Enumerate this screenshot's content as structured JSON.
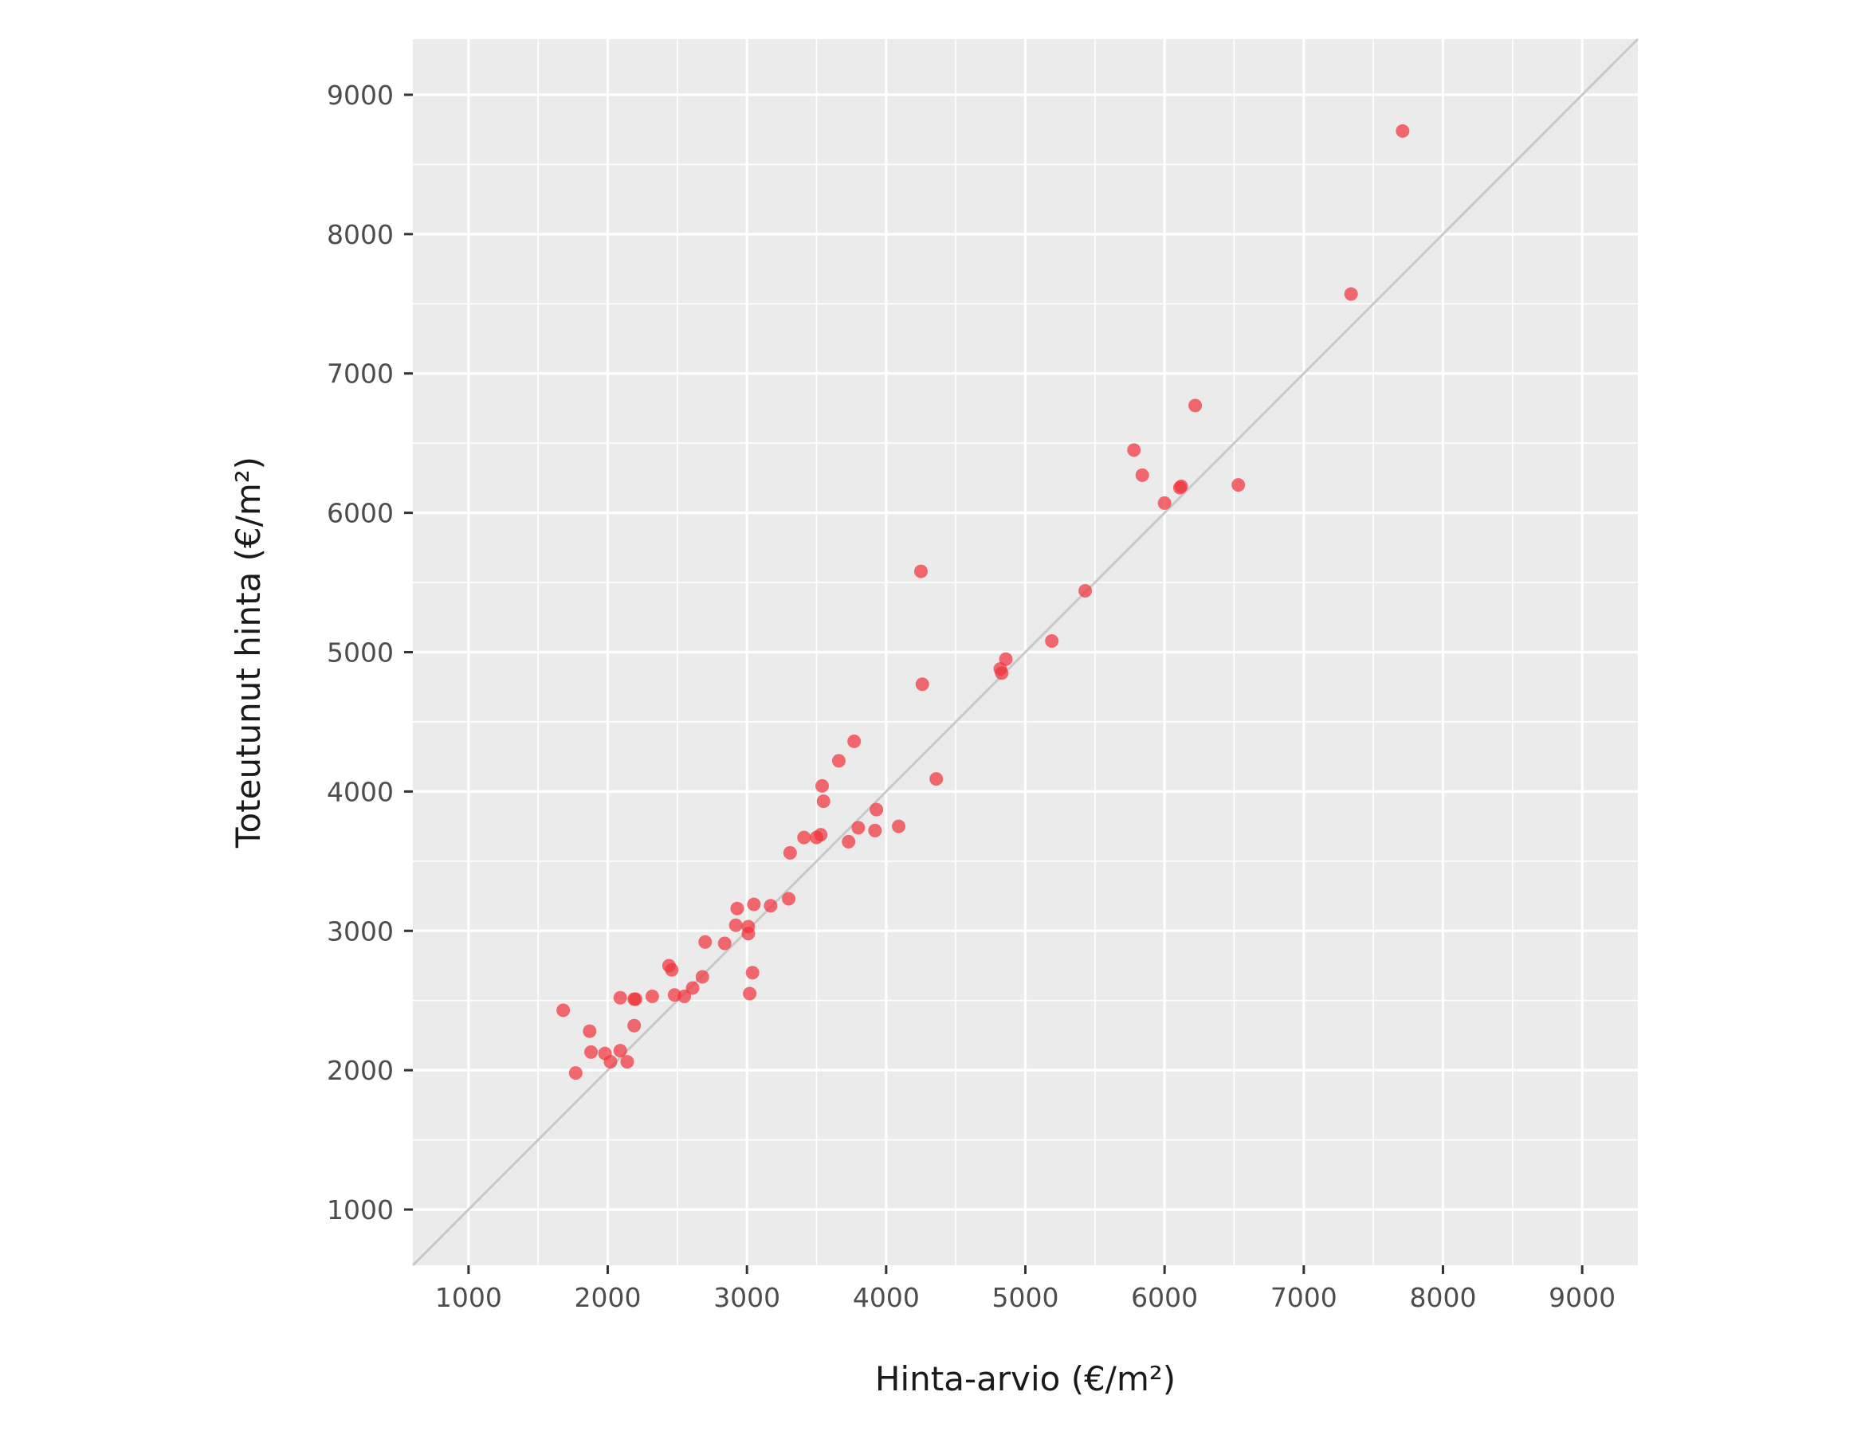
{
  "chart_data": {
    "type": "scatter",
    "title": "",
    "xlabel": "Hinta-arvio (€/m²)",
    "ylabel": "Toteutunut hinta (€/m²)",
    "xlim": [
      600,
      9400
    ],
    "ylim": [
      600,
      9400
    ],
    "xticks": [
      1000,
      2000,
      3000,
      4000,
      5000,
      6000,
      7000,
      8000,
      9000
    ],
    "yticks": [
      1000,
      2000,
      3000,
      4000,
      5000,
      6000,
      7000,
      8000,
      9000
    ],
    "xtick_labels": [
      "1000",
      "2000",
      "3000",
      "4000",
      "5000",
      "6000",
      "7000",
      "8000",
      "9000"
    ],
    "ytick_labels": [
      "1000",
      "2000",
      "3000",
      "4000",
      "5000",
      "6000",
      "7000",
      "8000",
      "9000"
    ],
    "grid": true,
    "reference_line": "y = x",
    "colors": {
      "panel_background": "#ebebeb",
      "grid": "#ffffff",
      "reference_line": "#c8c8c8",
      "points": "#f0333a"
    },
    "series": [
      {
        "x": [
          1680,
          1770,
          1870,
          1880,
          1980,
          2020,
          2090,
          2090,
          2140,
          2190,
          2190,
          2200,
          2320,
          2440,
          2460,
          2480,
          2550,
          2610,
          2680,
          2700,
          2840,
          2920,
          2930,
          3010,
          3010,
          3020,
          3040,
          3050,
          3170,
          3300,
          3310,
          3410,
          3500,
          3530,
          3540,
          3550,
          3660,
          3730,
          3770,
          3800,
          3920,
          3930,
          4090,
          4250,
          4260,
          4360,
          4820,
          4830,
          4860,
          5190,
          5430,
          5780,
          5840,
          6000,
          6110,
          6120,
          6220,
          6530,
          7340,
          7710
        ],
        "y": [
          2430,
          1980,
          2280,
          2130,
          2120,
          2060,
          2520,
          2140,
          2060,
          2510,
          2320,
          2510,
          2530,
          2750,
          2720,
          2540,
          2530,
          2590,
          2670,
          2920,
          2910,
          3040,
          3160,
          2980,
          3030,
          2550,
          2700,
          3190,
          3180,
          3230,
          3560,
          3670,
          3670,
          3690,
          4040,
          3930,
          4220,
          3640,
          4360,
          3740,
          3720,
          3870,
          3750,
          5580,
          4770,
          4090,
          4880,
          4850,
          4950,
          5080,
          5440,
          6450,
          6270,
          6070,
          6180,
          6190,
          6770,
          6200,
          7570,
          8740
        ]
      }
    ]
  }
}
